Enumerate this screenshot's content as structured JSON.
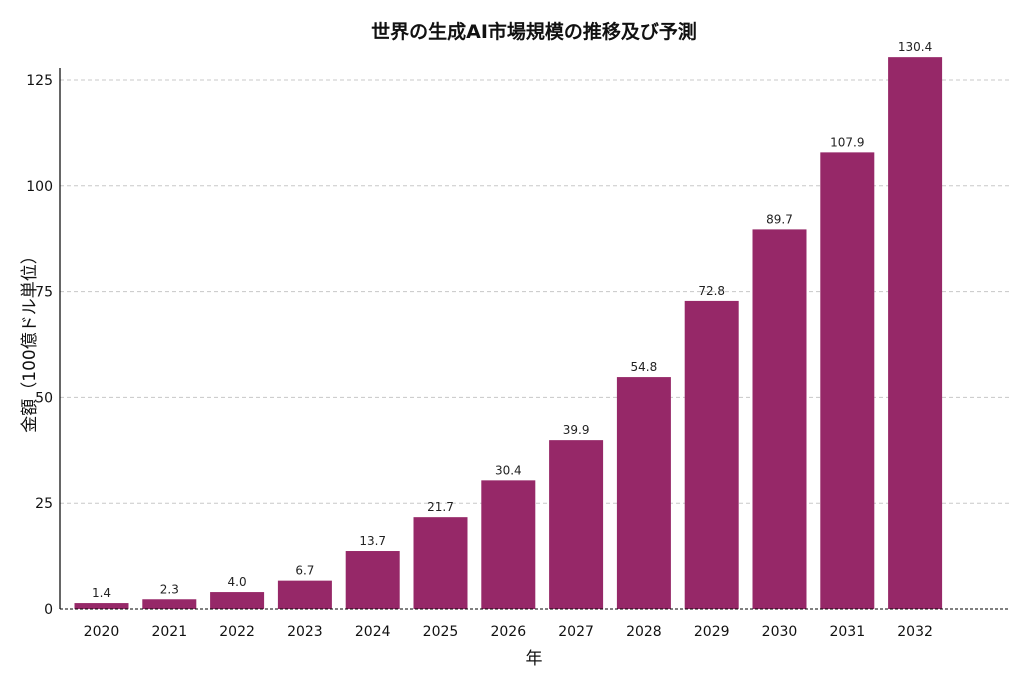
{
  "chart_data": {
    "type": "bar",
    "title": "世界の生成AI市場規模の推移及び予測",
    "xlabel": "年",
    "ylabel": "金額（100億ドル単位）",
    "categories": [
      "2020",
      "2021",
      "2022",
      "2023",
      "2024",
      "2025",
      "2026",
      "2027",
      "2028",
      "2029",
      "2030",
      "2031",
      "2032"
    ],
    "values": [
      1.4,
      2.3,
      4.0,
      6.7,
      13.7,
      21.7,
      30.4,
      39.9,
      54.8,
      72.8,
      89.7,
      107.9,
      130.4
    ],
    "data_labels": [
      "1.4",
      "2.3",
      "4.0",
      "6.7",
      "13.7",
      "21.7",
      "30.4",
      "39.9",
      "54.8",
      "72.8",
      "89.7",
      "107.9",
      "130.4"
    ],
    "yticks": [
      0,
      25,
      50,
      75,
      100,
      125
    ],
    "ylim": [
      0,
      125
    ],
    "grid": true,
    "bar_color": "#962868"
  }
}
